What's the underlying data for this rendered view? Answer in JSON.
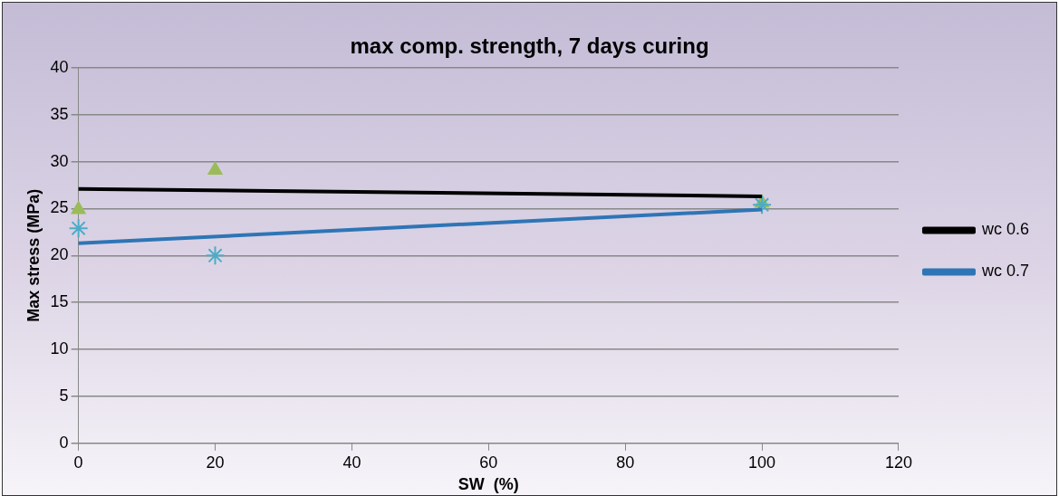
{
  "chart_data": {
    "type": "scatter",
    "title": "max comp. strength, 7 days curing",
    "xlabel": "SW  (%)",
    "ylabel": "Max stress (MPa)",
    "xlim": [
      0,
      120
    ],
    "xticks": [
      0,
      20,
      40,
      60,
      80,
      100,
      120
    ],
    "ylim": [
      0,
      40
    ],
    "yticks": [
      0,
      5,
      10,
      15,
      20,
      25,
      30,
      35,
      40
    ],
    "grid": "y",
    "legend": "right",
    "series": [
      {
        "type": "scatter",
        "marker": "triangle",
        "color": "#9bbb59",
        "x": [
          0,
          20,
          100
        ],
        "values": [
          24.9,
          29.1,
          25.6
        ]
      },
      {
        "type": "scatter",
        "marker": "cross",
        "color": "#4bacc6",
        "x": [
          0,
          20,
          100
        ],
        "values": [
          22.9,
          20,
          25.4
        ]
      },
      {
        "type": "line",
        "marker": "none",
        "name": "wc 0.6",
        "color": "#000000",
        "x": [
          0,
          100
        ],
        "values": [
          27.1,
          26.3
        ]
      },
      {
        "type": "line",
        "marker": "none",
        "name": "wc 0.7",
        "color": "#2e75b6",
        "x": [
          0,
          100
        ],
        "values": [
          21.3,
          24.9
        ]
      }
    ]
  }
}
